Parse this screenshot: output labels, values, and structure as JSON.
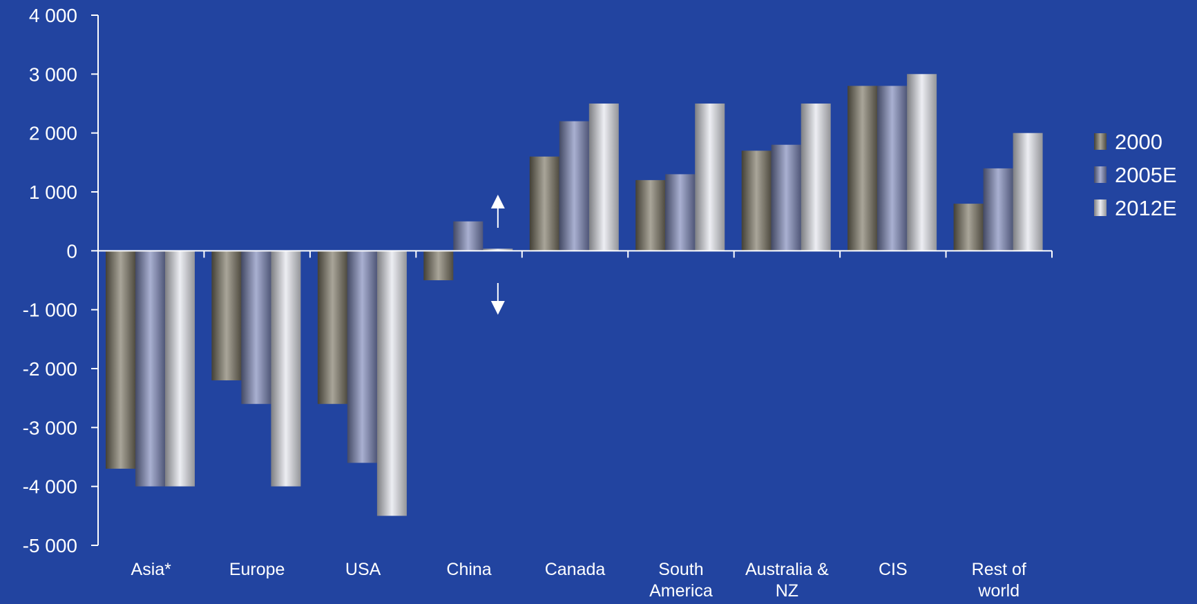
{
  "chart_data": {
    "type": "bar",
    "title": "",
    "xlabel": "",
    "ylabel": "",
    "ylim": [
      -5000,
      4000
    ],
    "yticks": [
      4000,
      3000,
      2000,
      1000,
      0,
      -1000,
      -2000,
      -3000,
      -4000,
      -5000
    ],
    "ytick_labels": [
      "4 000",
      "3 000",
      "2 000",
      "1 000",
      "0",
      "-1 000",
      "-2 000",
      "-3 000",
      "-4 000",
      "-5 000"
    ],
    "categories": [
      "Asia*",
      "Europe",
      "USA",
      "China",
      "Canada",
      "South America",
      "Australia & NZ",
      "CIS",
      "Rest of world"
    ],
    "category_lines": [
      [
        "Asia*"
      ],
      [
        "Europe"
      ],
      [
        "USA"
      ],
      [
        "China"
      ],
      [
        "Canada"
      ],
      [
        "South",
        "America"
      ],
      [
        "Australia &",
        "NZ"
      ],
      [
        "CIS"
      ],
      [
        "Rest of",
        "world"
      ]
    ],
    "series": [
      {
        "name": "2000",
        "values": [
          -3700,
          -2200,
          -2600,
          -500,
          1600,
          1200,
          1700,
          2800,
          800
        ]
      },
      {
        "name": "2005E",
        "values": [
          -4000,
          -2600,
          -3600,
          500,
          2200,
          1300,
          1800,
          2800,
          1400
        ]
      },
      {
        "name": "2012E",
        "values": [
          -4000,
          -4000,
          -4500,
          0,
          2500,
          2500,
          2500,
          3000,
          2000
        ]
      }
    ],
    "legend": {
      "position": "right",
      "entries": [
        "2000",
        "2005E",
        "2012E"
      ]
    },
    "grid": false,
    "annotations": [
      {
        "type": "up-arrow",
        "category": "China"
      },
      {
        "type": "down-arrow",
        "category": "China"
      }
    ],
    "colors": {
      "background": "#2244a0",
      "axis": "#ffffff",
      "series": [
        "#7a7462",
        "#7b86b8",
        "#e4e5ec"
      ]
    }
  }
}
